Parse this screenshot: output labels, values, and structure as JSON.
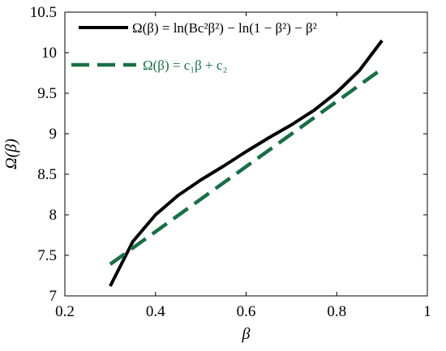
{
  "chart_data": {
    "type": "line",
    "xlabel": "β",
    "ylabel": "Ω(β)",
    "xlim": [
      0.2,
      1.0
    ],
    "ylim": [
      7.0,
      10.5
    ],
    "xticks": [
      "0.2",
      "0.4",
      "0.6",
      "0.8",
      "1"
    ],
    "yticks": [
      "7",
      "7.5",
      "8",
      "8.5",
      "9",
      "9.5",
      "10",
      "10.5"
    ],
    "grid": false,
    "legend_position": "top",
    "series": [
      {
        "name": "Ω(β) = ln(Bc²β²) − ln(1 − β²) − β²",
        "style": "solid",
        "color": "#000000",
        "x": [
          0.3,
          0.35,
          0.4,
          0.45,
          0.5,
          0.55,
          0.6,
          0.65,
          0.7,
          0.75,
          0.8,
          0.85,
          0.9
        ],
        "y": [
          7.12,
          7.67,
          8.0,
          8.24,
          8.43,
          8.6,
          8.78,
          8.95,
          9.11,
          9.29,
          9.51,
          9.78,
          10.15
        ]
      },
      {
        "name": "Ω(β) = c₁β + c₂",
        "style": "dashed",
        "color": "#1a6e46",
        "x": [
          0.3,
          0.9
        ],
        "y": [
          7.39,
          9.8
        ]
      }
    ]
  }
}
